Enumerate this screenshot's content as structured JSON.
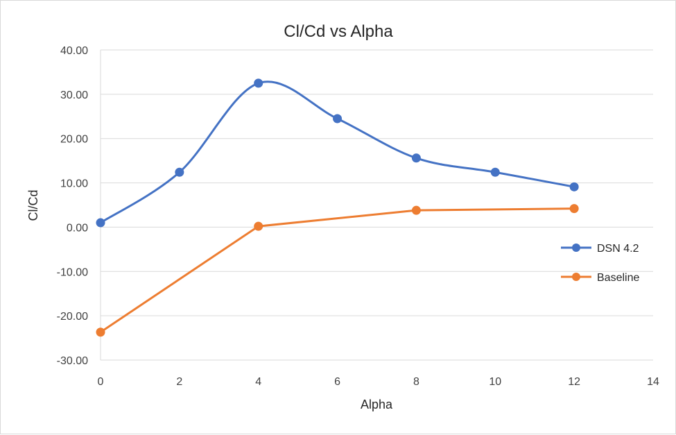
{
  "chart_data": {
    "type": "line",
    "title": "Cl/Cd vs Alpha",
    "xlabel": "Alpha",
    "ylabel": "Cl/Cd",
    "xlim": [
      0,
      14
    ],
    "ylim": [
      -30,
      40
    ],
    "x_ticks": [
      0,
      2,
      4,
      6,
      8,
      10,
      12,
      14
    ],
    "y_ticks": [
      40,
      30,
      20,
      10,
      0,
      -10,
      -20,
      -30
    ],
    "y_tick_labels": [
      "40.00",
      "30.00",
      "20.00",
      "10.00",
      "0.00",
      "-10.00",
      "-20.00",
      "-30.00"
    ],
    "grid": "horizontal",
    "legend_position": "right",
    "series": [
      {
        "name": "DSN 4.2",
        "color": "#4472c4",
        "smooth": true,
        "x": [
          0,
          2,
          4,
          6,
          8,
          10,
          12
        ],
        "y": [
          1.0,
          12.4,
          32.5,
          24.5,
          15.6,
          12.4,
          9.1
        ]
      },
      {
        "name": "Baseline",
        "color": "#ed7d31",
        "smooth": false,
        "x": [
          0,
          4,
          8,
          12
        ],
        "y": [
          -23.7,
          0.2,
          3.8,
          4.2
        ]
      }
    ]
  }
}
